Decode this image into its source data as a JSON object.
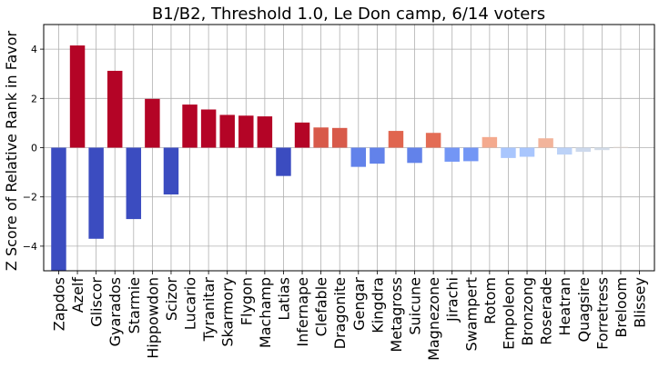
{
  "chart_data": {
    "type": "bar",
    "title": "B1/B2, Threshold 1.0, Le Don camp, 6/14 voters",
    "xlabel": "",
    "ylabel": "Z Score of Relative Rank in Favor",
    "ylim": [
      -5,
      5
    ],
    "yticks": [
      -4,
      -2,
      0,
      2,
      4
    ],
    "ytick_labels": [
      "−4",
      "−2",
      "0",
      "2",
      "4"
    ],
    "grid": true,
    "colormap": "coolwarm",
    "categories": [
      "Zapdos",
      "Azelf",
      "Gliscor",
      "Gyarados",
      "Starmie",
      "Hippowdon",
      "Scizor",
      "Lucario",
      "Tyranitar",
      "Skarmory",
      "Flygon",
      "Machamp",
      "Latias",
      "Infernape",
      "Clefable",
      "Dragonite",
      "Gengar",
      "Kingdra",
      "Metagross",
      "Suicune",
      "Magnezone",
      "Jirachi",
      "Swampert",
      "Rotom",
      "Empoleon",
      "Bronzong",
      "Roserade",
      "Heatran",
      "Quagsire",
      "Forretress",
      "Breloom",
      "Blissey"
    ],
    "values": [
      -5.0,
      4.15,
      -3.7,
      3.12,
      -2.9,
      1.98,
      -1.9,
      1.75,
      1.55,
      1.33,
      1.3,
      1.27,
      -1.15,
      1.02,
      0.82,
      0.8,
      -0.78,
      -0.65,
      0.68,
      -0.62,
      0.6,
      -0.57,
      -0.55,
      0.43,
      -0.42,
      -0.37,
      0.38,
      -0.28,
      -0.17,
      -0.1,
      0.03,
      0.0
    ],
    "colors": [
      "#3b4cc0",
      "#b40426",
      "#3b4cc0",
      "#b40426",
      "#3b4cc0",
      "#b40426",
      "#3b4cc0",
      "#b40426",
      "#b40426",
      "#b40426",
      "#b40426",
      "#b40426",
      "#3b4cc0",
      "#b40426",
      "#d85a4a",
      "#d85a4a",
      "#6282ea",
      "#6282ea",
      "#e0654f",
      "#6282ea",
      "#e36c55",
      "#7396f5",
      "#7396f5",
      "#f4aa8e",
      "#a9c6fd",
      "#a9c6fd",
      "#f2b49b",
      "#bcd2f7",
      "#cdd9ec",
      "#d2dbe8",
      "#e3d9d3",
      "#dddcdc"
    ]
  }
}
